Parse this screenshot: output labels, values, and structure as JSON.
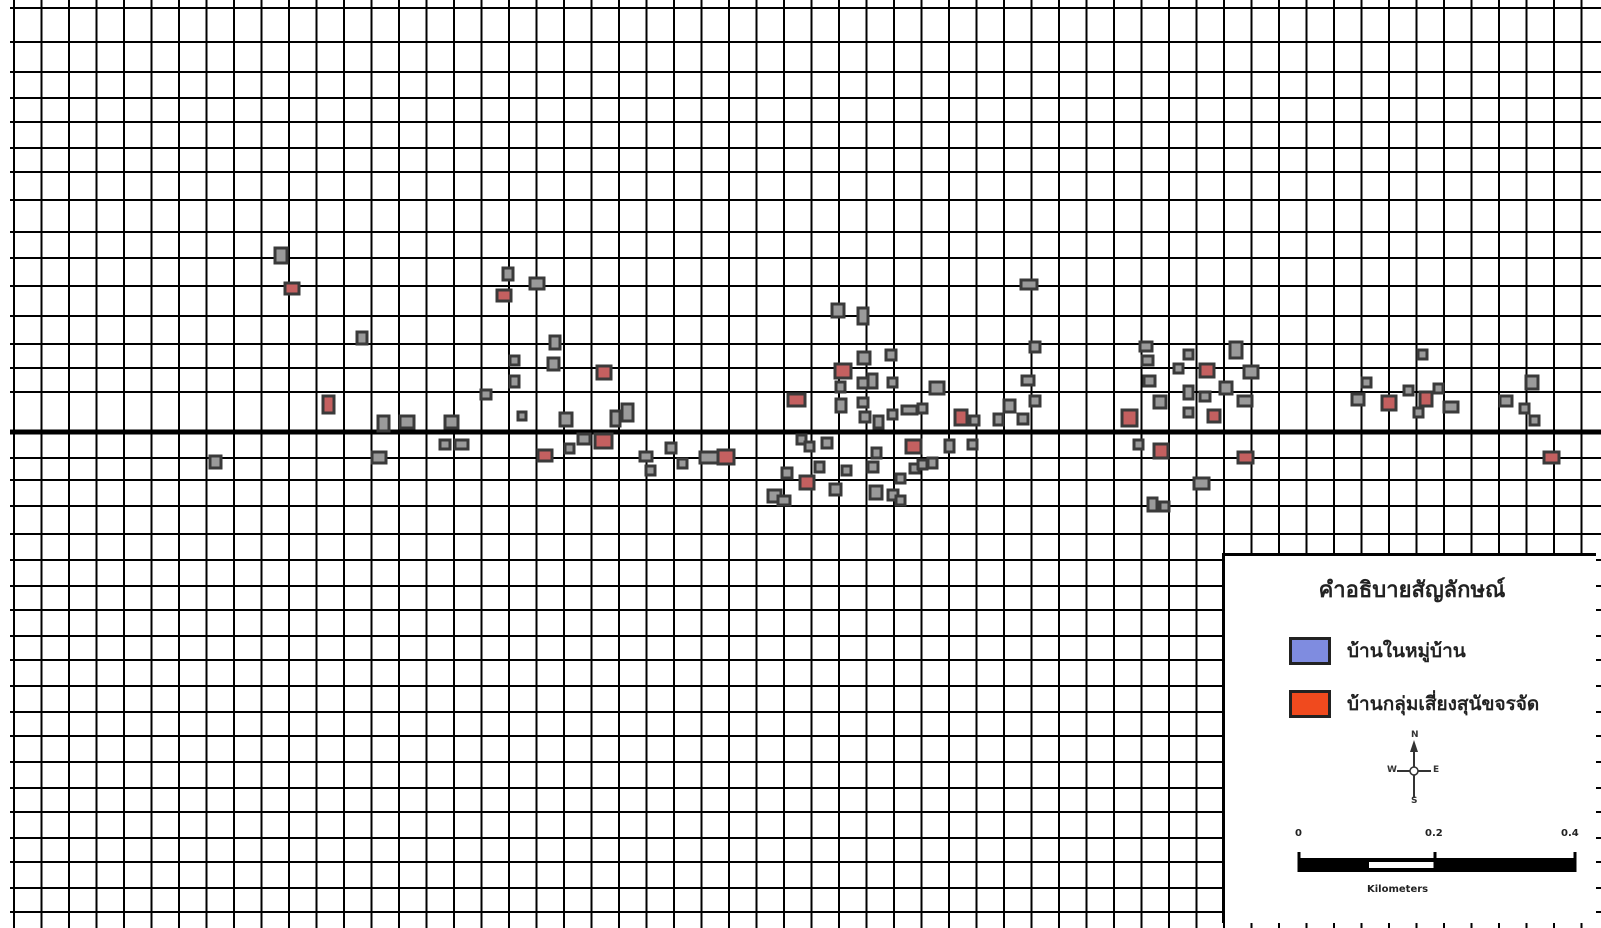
{
  "colors": {
    "grid": "#000000",
    "building_outline": "#3a3a3a",
    "building_fill_generic": "#9a9a9a",
    "village_house": "#7f8ce0",
    "at_risk_house": "#f04a1e",
    "at_risk_map_fill": "#c46060"
  },
  "legend": {
    "title": "คำอธิบายสัญลักษณ์",
    "items": [
      {
        "label": "บ้านในหมู่บ้าน",
        "color": "#7f8ce0"
      },
      {
        "label": "บ้านกลุ่มเสี่ยงสุนัขจรจัด",
        "color": "#f04a1e"
      }
    ],
    "north_arrow": {
      "n": "N",
      "s": "S",
      "e": "E",
      "w": "W"
    },
    "scale": {
      "ticks": [
        "0",
        "0.2",
        "0.4"
      ],
      "unit": "Kilometers"
    }
  }
}
